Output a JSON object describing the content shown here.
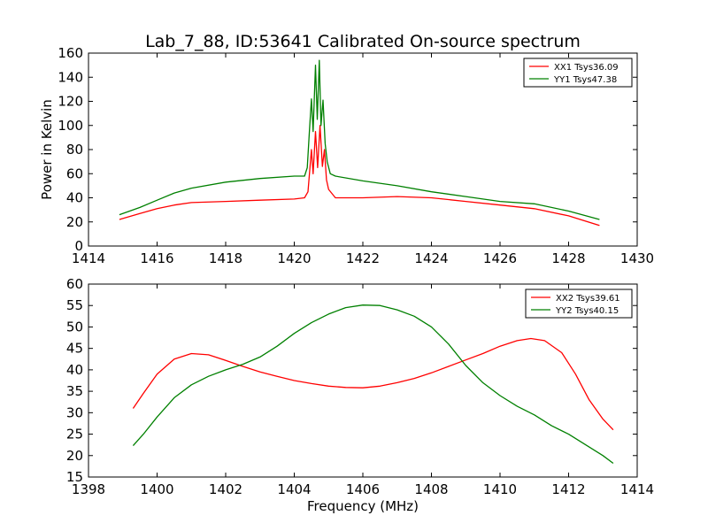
{
  "title": "Lab_7_88, ID:53641 Calibrated On-source spectrum",
  "chart_data": [
    {
      "type": "line",
      "xlim": [
        1414,
        1430
      ],
      "ylim": [
        0,
        160
      ],
      "xticks": [
        1414,
        1416,
        1418,
        1420,
        1422,
        1424,
        1426,
        1428,
        1430
      ],
      "yticks": [
        0,
        20,
        40,
        60,
        80,
        100,
        120,
        140,
        160
      ],
      "xlabel": "",
      "ylabel": "Power in Kelvin",
      "grid": false,
      "legend_position": "top-right",
      "series": [
        {
          "name": "XX1 Tsys36.09",
          "color": "#ff0000",
          "points": [
            [
              1414.9,
              22
            ],
            [
              1415.5,
              27
            ],
            [
              1416,
              31
            ],
            [
              1416.5,
              34
            ],
            [
              1417,
              36
            ],
            [
              1418,
              37
            ],
            [
              1419,
              38
            ],
            [
              1420,
              39
            ],
            [
              1420.3,
              40
            ],
            [
              1420.4,
              45
            ],
            [
              1420.45,
              62
            ],
            [
              1420.5,
              80
            ],
            [
              1420.55,
              60
            ],
            [
              1420.62,
              95
            ],
            [
              1420.68,
              65
            ],
            [
              1420.75,
              100
            ],
            [
              1420.82,
              66
            ],
            [
              1420.88,
              80
            ],
            [
              1420.94,
              55
            ],
            [
              1421,
              47
            ],
            [
              1421.2,
              40
            ],
            [
              1422,
              40
            ],
            [
              1423,
              41
            ],
            [
              1424,
              40
            ],
            [
              1425,
              37
            ],
            [
              1426,
              34
            ],
            [
              1427,
              31
            ],
            [
              1428,
              25
            ],
            [
              1428.9,
              17
            ]
          ]
        },
        {
          "name": "YY1 Tsys47.38",
          "color": "#008000",
          "points": [
            [
              1414.9,
              26
            ],
            [
              1415.5,
              32
            ],
            [
              1416,
              38
            ],
            [
              1416.5,
              44
            ],
            [
              1417,
              48
            ],
            [
              1418,
              53
            ],
            [
              1419,
              56
            ],
            [
              1420,
              58
            ],
            [
              1420.3,
              58
            ],
            [
              1420.38,
              65
            ],
            [
              1420.44,
              95
            ],
            [
              1420.5,
              122
            ],
            [
              1420.55,
              95
            ],
            [
              1420.62,
              150
            ],
            [
              1420.67,
              105
            ],
            [
              1420.73,
              154
            ],
            [
              1420.78,
              100
            ],
            [
              1420.84,
              121
            ],
            [
              1420.9,
              85
            ],
            [
              1420.96,
              70
            ],
            [
              1421.05,
              60
            ],
            [
              1421.2,
              58
            ],
            [
              1422,
              54
            ],
            [
              1423,
              50
            ],
            [
              1424,
              45
            ],
            [
              1425,
              41
            ],
            [
              1426,
              37
            ],
            [
              1427,
              35
            ],
            [
              1428,
              29
            ],
            [
              1428.9,
              22
            ]
          ]
        }
      ]
    },
    {
      "type": "line",
      "xlim": [
        1398,
        1414
      ],
      "ylim": [
        15,
        60
      ],
      "xticks": [
        1398,
        1400,
        1402,
        1404,
        1406,
        1408,
        1410,
        1412,
        1414
      ],
      "yticks": [
        15,
        20,
        25,
        30,
        35,
        40,
        45,
        50,
        55,
        60
      ],
      "xlabel": "Frequency (MHz)",
      "ylabel": "",
      "grid": false,
      "legend_position": "top-right",
      "series": [
        {
          "name": "XX2 Tsys39.61",
          "color": "#ff0000",
          "points": [
            [
              1399.3,
              31
            ],
            [
              1399.6,
              34.5
            ],
            [
              1400,
              39
            ],
            [
              1400.5,
              42.5
            ],
            [
              1401,
              43.8
            ],
            [
              1401.5,
              43.5
            ],
            [
              1402,
              42.2
            ],
            [
              1402.5,
              40.8
            ],
            [
              1403,
              39.5
            ],
            [
              1403.5,
              38.5
            ],
            [
              1404,
              37.5
            ],
            [
              1404.5,
              36.8
            ],
            [
              1405,
              36.2
            ],
            [
              1405.5,
              35.9
            ],
            [
              1406,
              35.8
            ],
            [
              1406.5,
              36.2
            ],
            [
              1407,
              37
            ],
            [
              1407.5,
              38
            ],
            [
              1408,
              39.3
            ],
            [
              1408.5,
              40.8
            ],
            [
              1409,
              42.3
            ],
            [
              1409.5,
              43.8
            ],
            [
              1410,
              45.5
            ],
            [
              1410.5,
              46.8
            ],
            [
              1410.9,
              47.3
            ],
            [
              1411.3,
              46.8
            ],
            [
              1411.8,
              44
            ],
            [
              1412.2,
              39
            ],
            [
              1412.6,
              33
            ],
            [
              1413,
              28.5
            ],
            [
              1413.3,
              26
            ]
          ]
        },
        {
          "name": "YY2 Tsys40.15",
          "color": "#008000",
          "points": [
            [
              1399.3,
              22.3
            ],
            [
              1399.6,
              25
            ],
            [
              1400,
              29
            ],
            [
              1400.5,
              33.5
            ],
            [
              1401,
              36.5
            ],
            [
              1401.5,
              38.5
            ],
            [
              1402,
              40
            ],
            [
              1402.5,
              41.3
            ],
            [
              1403,
              43
            ],
            [
              1403.5,
              45.5
            ],
            [
              1404,
              48.5
            ],
            [
              1404.5,
              51
            ],
            [
              1405,
              53
            ],
            [
              1405.5,
              54.5
            ],
            [
              1406,
              55.1
            ],
            [
              1406.5,
              55
            ],
            [
              1407,
              54
            ],
            [
              1407.5,
              52.5
            ],
            [
              1408,
              50
            ],
            [
              1408.5,
              46
            ],
            [
              1409,
              41
            ],
            [
              1409.5,
              37
            ],
            [
              1410,
              34
            ],
            [
              1410.5,
              31.5
            ],
            [
              1411,
              29.5
            ],
            [
              1411.5,
              27
            ],
            [
              1412,
              25
            ],
            [
              1412.5,
              22.5
            ],
            [
              1413,
              20
            ],
            [
              1413.3,
              18.2
            ]
          ]
        }
      ]
    }
  ]
}
